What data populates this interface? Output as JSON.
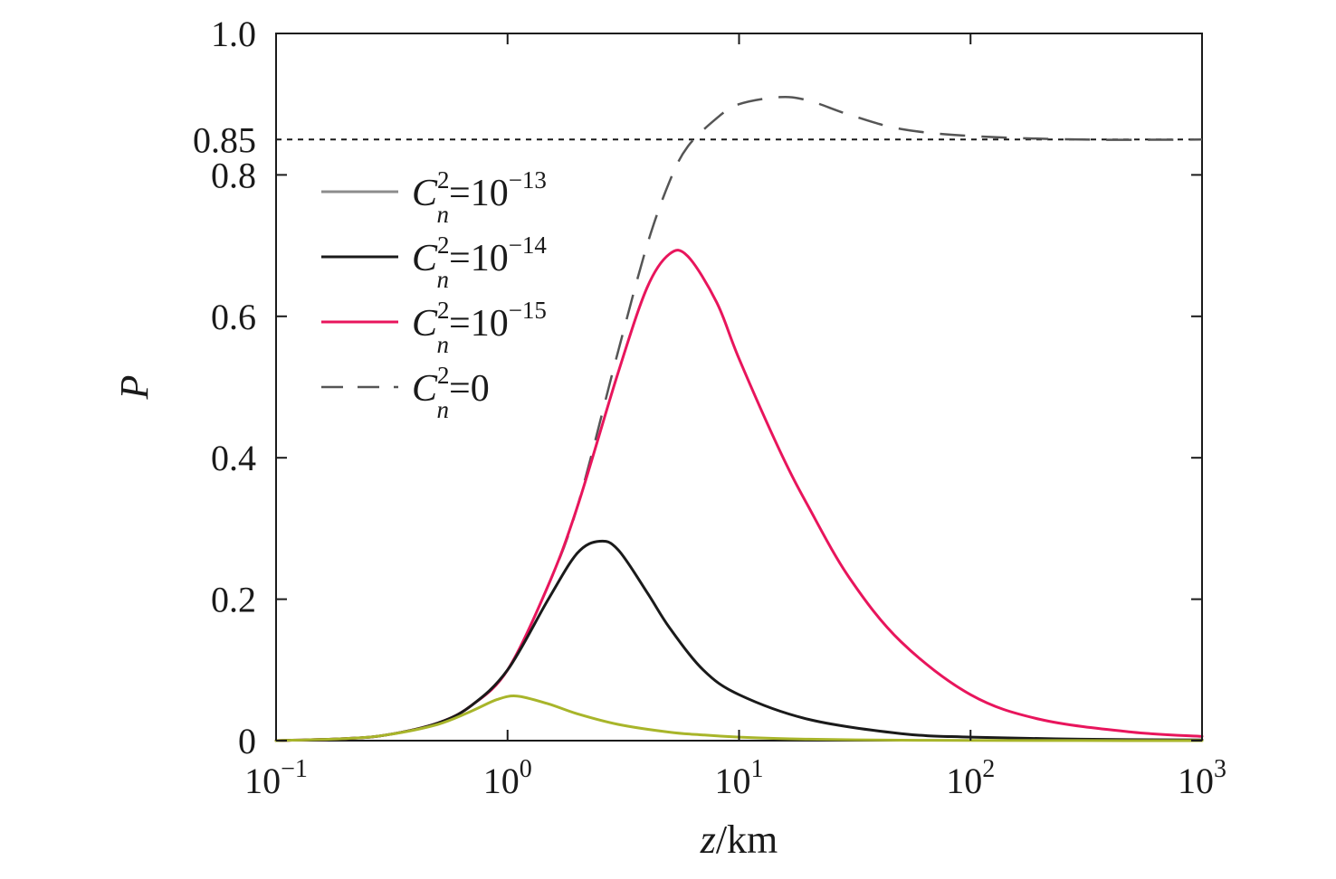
{
  "chart_data": {
    "type": "line",
    "xscale": "log",
    "xlim": [
      0.1,
      1000
    ],
    "ylim": [
      0,
      1.0
    ],
    "grid": false,
    "legend_position": "upper-left",
    "xlabel": {
      "var": "z",
      "unit": "/km"
    },
    "ylabel": "P",
    "x_ticks": [
      {
        "value": 0.1,
        "base": "10",
        "exp": "−1"
      },
      {
        "value": 1,
        "base": "10",
        "exp": "0"
      },
      {
        "value": 10,
        "base": "10",
        "exp": "1"
      },
      {
        "value": 100,
        "base": "10",
        "exp": "2"
      },
      {
        "value": 1000,
        "base": "10",
        "exp": "3"
      }
    ],
    "y_ticks": [
      {
        "value": 0,
        "label": "0"
      },
      {
        "value": 0.2,
        "label": "0.2"
      },
      {
        "value": 0.4,
        "label": "0.4"
      },
      {
        "value": 0.6,
        "label": "0.6"
      },
      {
        "value": 0.8,
        "label": "0.8"
      },
      {
        "value": 1.0,
        "label": "1.0"
      }
    ],
    "reference_line": {
      "y": 0.85,
      "label": "0.85",
      "style": "dotted",
      "color": "#1a1a1a"
    },
    "series": [
      {
        "legend": {
          "sym": "C",
          "sup": "2",
          "sub": "n",
          "rest": "=10",
          "exp": "−13"
        },
        "color": "#a8b52a",
        "legend_color": "#8c8c8c",
        "style": "solid",
        "x": [
          0.1,
          0.2,
          0.3,
          0.5,
          0.7,
          0.9,
          1.1,
          1.5,
          2,
          3,
          5,
          7,
          10,
          20,
          50,
          100,
          300,
          1000
        ],
        "y": [
          0.0,
          0.003,
          0.008,
          0.023,
          0.042,
          0.058,
          0.063,
          0.052,
          0.038,
          0.023,
          0.012,
          0.008,
          0.005,
          0.002,
          0.0007,
          0.0004,
          0.0001,
          0.0
        ]
      },
      {
        "legend": {
          "sym": "C",
          "sup": "2",
          "sub": "n",
          "rest": "=10",
          "exp": "−14"
        },
        "color": "#1a1a1a",
        "legend_color": "#1a1a1a",
        "style": "solid",
        "x": [
          0.1,
          0.2,
          0.3,
          0.5,
          0.7,
          1,
          1.5,
          2,
          2.5,
          3,
          4,
          5,
          7,
          10,
          20,
          50,
          100,
          300,
          1000
        ],
        "y": [
          0.0,
          0.003,
          0.008,
          0.025,
          0.05,
          0.1,
          0.2,
          0.265,
          0.282,
          0.27,
          0.21,
          0.16,
          0.1,
          0.065,
          0.03,
          0.01,
          0.005,
          0.002,
          0.001
        ]
      },
      {
        "legend": {
          "sym": "C",
          "sup": "2",
          "sub": "n",
          "rest": "=10",
          "exp": "−15"
        },
        "color": "#e8155c",
        "legend_color": "#e8155c",
        "style": "solid",
        "x": [
          0.1,
          0.2,
          0.3,
          0.5,
          0.7,
          1,
          1.5,
          2,
          3,
          4,
          5,
          6,
          8,
          10,
          15,
          20,
          30,
          50,
          100,
          200,
          500,
          1000
        ],
        "y": [
          0.0,
          0.003,
          0.008,
          0.025,
          0.05,
          0.1,
          0.22,
          0.33,
          0.52,
          0.64,
          0.688,
          0.685,
          0.62,
          0.54,
          0.41,
          0.33,
          0.23,
          0.14,
          0.065,
          0.03,
          0.012,
          0.006
        ]
      },
      {
        "legend": {
          "sym": "C",
          "sup": "2",
          "sub": "n",
          "rest": "=0",
          "exp": ""
        },
        "color": "#555555",
        "legend_color": "#555555",
        "style": "dashed",
        "x": [
          0.1,
          0.2,
          0.3,
          0.5,
          0.7,
          1,
          1.5,
          2,
          3,
          4,
          5,
          6,
          8,
          10,
          15,
          20,
          30,
          50,
          100,
          300,
          1000
        ],
        "y": [
          0.0,
          0.003,
          0.008,
          0.025,
          0.05,
          0.1,
          0.22,
          0.33,
          0.55,
          0.7,
          0.79,
          0.84,
          0.88,
          0.9,
          0.91,
          0.905,
          0.885,
          0.865,
          0.855,
          0.85,
          0.85
        ]
      }
    ]
  }
}
